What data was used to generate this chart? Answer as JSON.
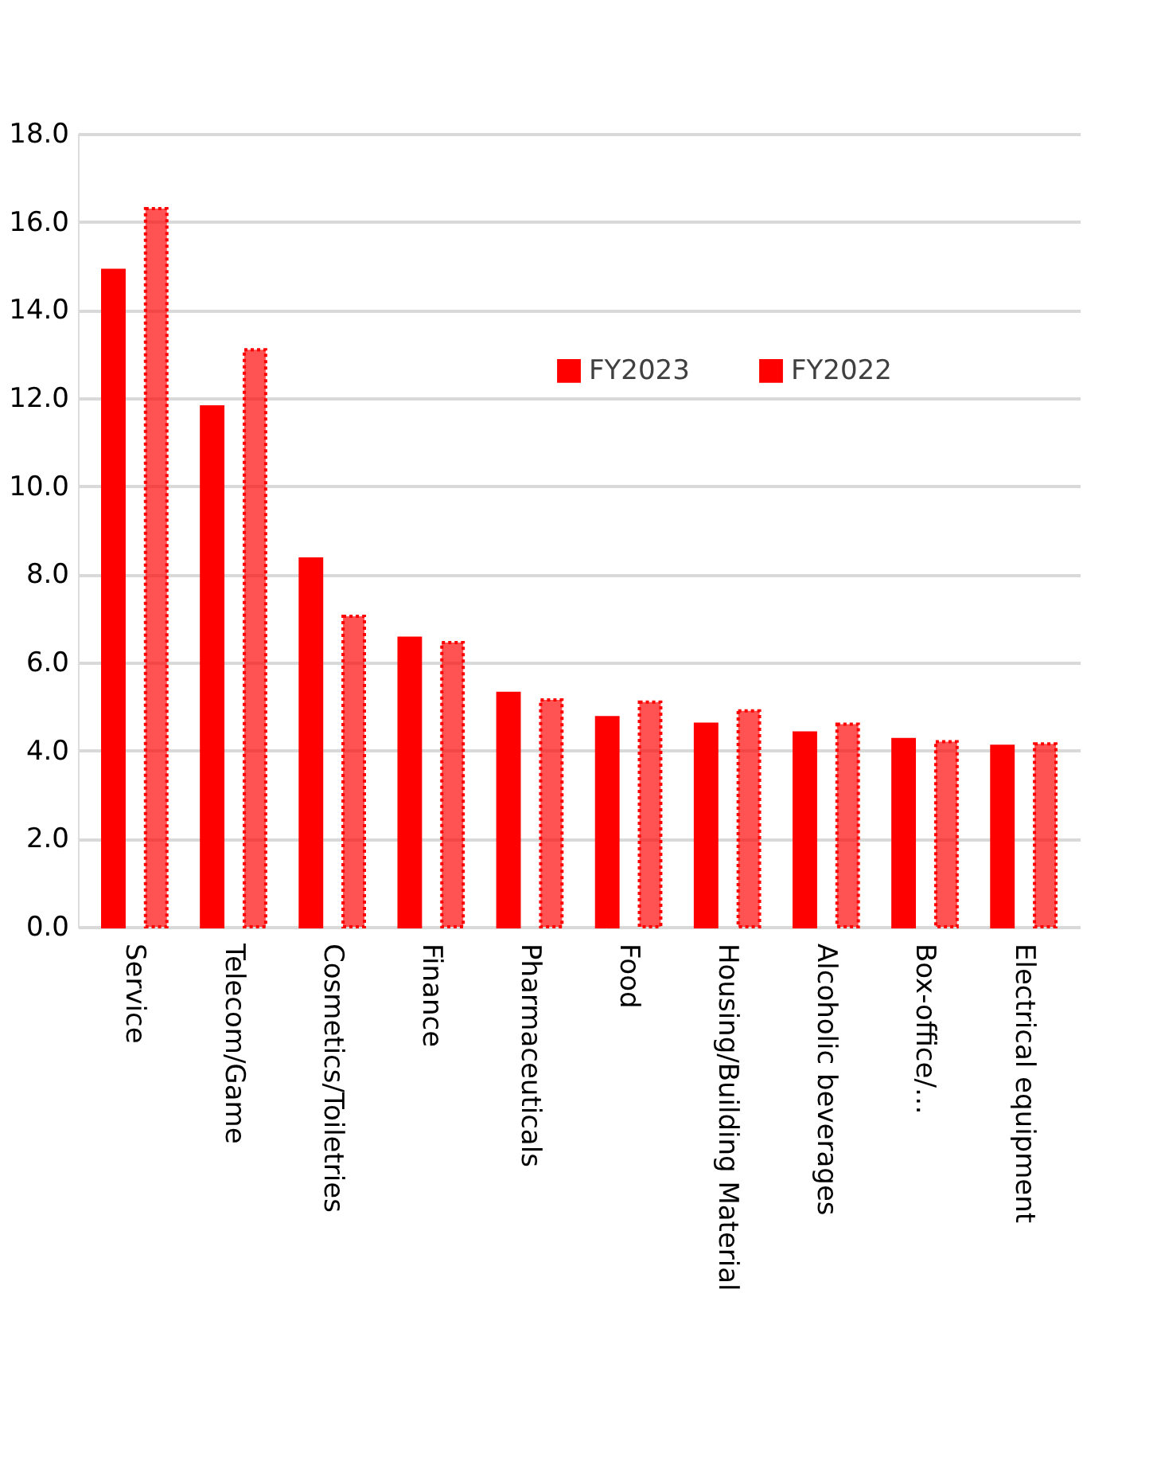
{
  "chart_data": {
    "type": "bar",
    "categories": [
      "Service",
      "Telecom/Game",
      "Cosmetics/Toiletries",
      "Finance",
      "Pharmaceuticals",
      "Food",
      "Housing/Building Material",
      "Alcoholic beverages",
      "Box-office/…",
      "Electrical equipment"
    ],
    "series": [
      {
        "name": "FY2023",
        "color": "#ff0000",
        "values": [
          14.9,
          11.8,
          8.35,
          6.55,
          5.3,
          4.75,
          4.6,
          4.4,
          4.25,
          4.1
        ]
      },
      {
        "name": "FY2022",
        "color": "#ff0000",
        "line_style": "dotted",
        "values": [
          16.3,
          13.1,
          7.05,
          6.45,
          5.15,
          5.1,
          4.9,
          4.6,
          4.2,
          4.15
        ]
      }
    ],
    "ylim": [
      0,
      18
    ],
    "yticks": [
      {
        "value": 0,
        "label": "0.0"
      },
      {
        "value": 2,
        "label": "2.0"
      },
      {
        "value": 4,
        "label": "4.0"
      },
      {
        "value": 6,
        "label": "6.0"
      },
      {
        "value": 8,
        "label": "8.0"
      },
      {
        "value": 10,
        "label": "10.0"
      },
      {
        "value": 12,
        "label": "12.0"
      },
      {
        "value": 14,
        "label": "14.0"
      },
      {
        "value": 16,
        "label": "16.0"
      },
      {
        "value": 18,
        "label": "18.0"
      }
    ],
    "grid": "y",
    "legend": "top right"
  }
}
